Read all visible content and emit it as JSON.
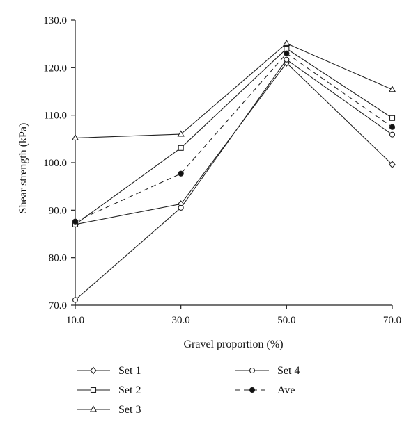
{
  "chart_data": {
    "type": "line",
    "title": "",
    "xlabel": "Gravel proportion (%)",
    "ylabel": "Shear strength (kPa)",
    "x": [
      10,
      30,
      50,
      70
    ],
    "x_tick_labels": [
      "10.0",
      "30.0",
      "50.0",
      "70.0"
    ],
    "ylim": [
      70,
      130
    ],
    "y_ticks": [
      70,
      80,
      90,
      100,
      110,
      120,
      130
    ],
    "y_tick_labels": [
      "70.0",
      "80.0",
      "90.0",
      "100.0",
      "110.0",
      "120.0",
      "130.0"
    ],
    "grid": false,
    "legend_position": "bottom",
    "series": [
      {
        "name": "Set 1",
        "marker": "diamond",
        "line": "solid",
        "values": [
          87.0,
          91.3,
          121.0,
          99.6
        ]
      },
      {
        "name": "Set 2",
        "marker": "square",
        "line": "solid",
        "values": [
          87.0,
          103.1,
          124.0,
          109.4
        ]
      },
      {
        "name": "Set 3",
        "marker": "triangle",
        "line": "solid",
        "values": [
          105.2,
          106.0,
          125.1,
          115.4
        ]
      },
      {
        "name": "Set 4",
        "marker": "circle-open",
        "line": "solid",
        "values": [
          71.1,
          90.5,
          121.7,
          105.9
        ]
      },
      {
        "name": "Ave",
        "marker": "circle-filled",
        "line": "dashed",
        "values": [
          87.6,
          97.7,
          123.0,
          107.5
        ]
      }
    ]
  }
}
